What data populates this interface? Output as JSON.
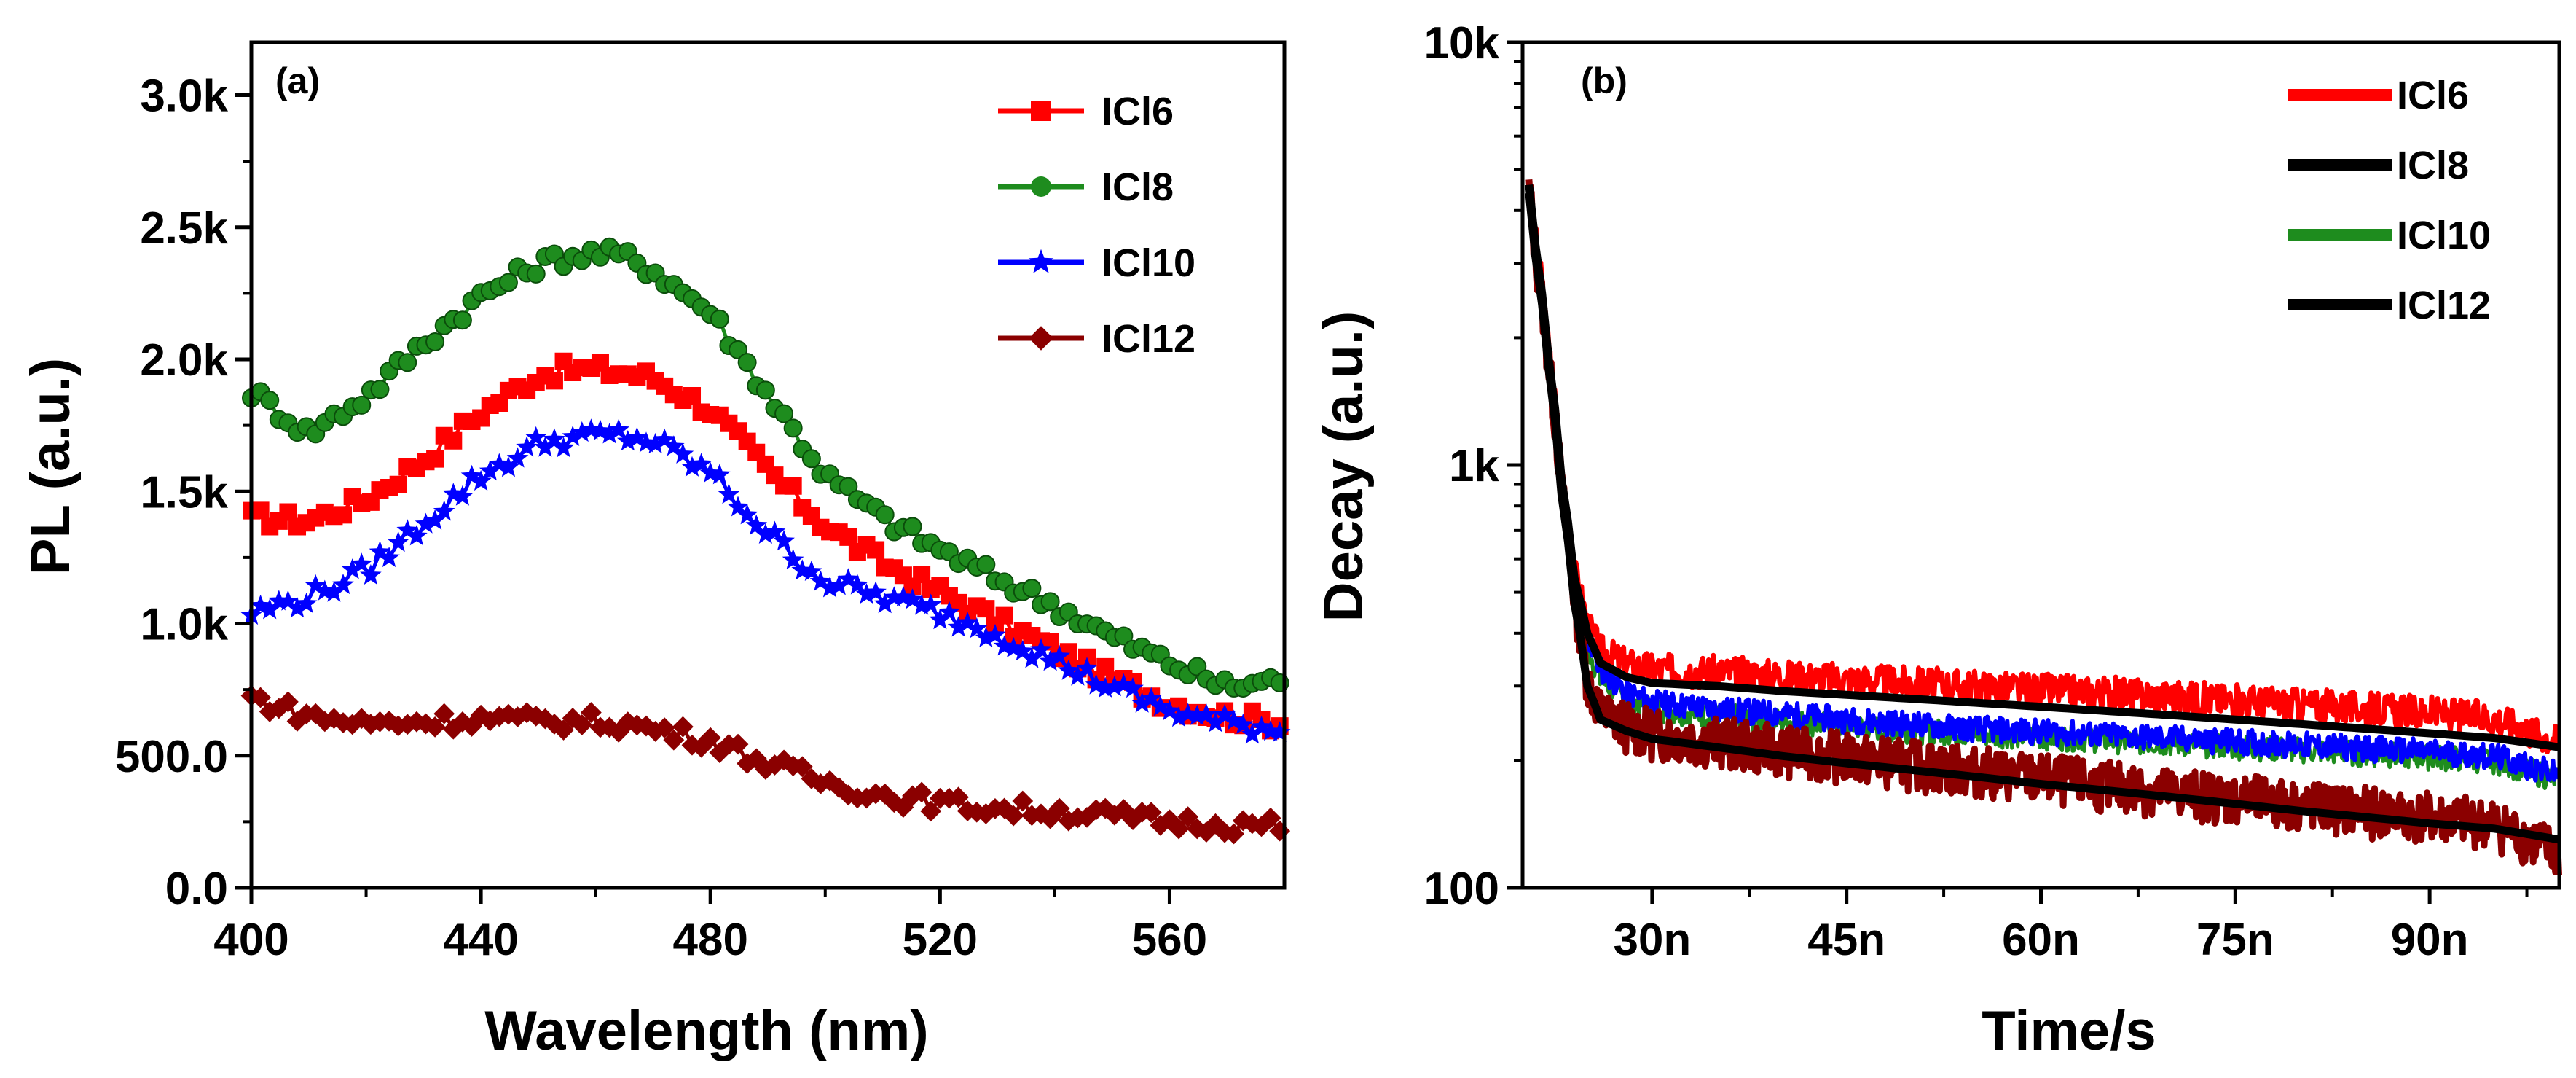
{
  "chart_data": [
    {
      "type": "scatter",
      "panel_label": "(a)",
      "xlabel": "Wavelength (nm)",
      "ylabel": "PL (a.u.)",
      "xlim": [
        400,
        580
      ],
      "ylim": [
        0,
        3200
      ],
      "x_ticks": [
        400,
        440,
        480,
        520,
        560
      ],
      "x_tick_labels": [
        "400",
        "440",
        "480",
        "520",
        "560"
      ],
      "y_ticks": [
        0,
        500,
        1000,
        1500,
        2000,
        2500,
        3000
      ],
      "y_tick_labels": [
        "0.0",
        "500.0",
        "1.0k",
        "1.5k",
        "2.0k",
        "2.5k",
        "3.0k"
      ],
      "legend_position": "top-right",
      "x": [
        400,
        410,
        420,
        430,
        440,
        450,
        455,
        460,
        465,
        470,
        480,
        490,
        500,
        510,
        520,
        530,
        540,
        550,
        560,
        570,
        580
      ],
      "series": [
        {
          "name": "ICl6",
          "color": "#ff0000",
          "marker": "square",
          "values": [
            1400,
            1390,
            1470,
            1620,
            1800,
            1940,
            1960,
            1960,
            1950,
            1930,
            1810,
            1580,
            1370,
            1230,
            1120,
            1010,
            900,
            790,
            700,
            650,
            620
          ]
        },
        {
          "name": "ICl8",
          "color": "#1e8c1e",
          "marker": "circle",
          "values": [
            1880,
            1720,
            1860,
            2060,
            2240,
            2360,
            2390,
            2400,
            2390,
            2340,
            2180,
            1870,
            1560,
            1400,
            1280,
            1170,
            1070,
            950,
            850,
            760,
            790
          ]
        },
        {
          "name": "ICl10",
          "color": "#0000ff",
          "marker": "star",
          "values": [
            1040,
            1100,
            1200,
            1380,
            1560,
            1680,
            1700,
            1710,
            1710,
            1690,
            1570,
            1340,
            1160,
            1100,
            1040,
            960,
            860,
            760,
            670,
            620,
            600
          ]
        },
        {
          "name": "ICl12",
          "color": "#8b0000",
          "marker": "diamond",
          "values": [
            720,
            650,
            620,
            630,
            640,
            630,
            630,
            630,
            620,
            600,
            560,
            470,
            400,
            350,
            320,
            300,
            290,
            270,
            250,
            240,
            230
          ]
        }
      ]
    },
    {
      "type": "line",
      "panel_label": "(b)",
      "xlabel": "Time/s",
      "ylabel": "Decay (a.u.)",
      "xlim": [
        20,
        100
      ],
      "ylim": [
        100,
        10000
      ],
      "y_scale": "log",
      "x_ticks": [
        30,
        45,
        60,
        75,
        90
      ],
      "x_tick_labels": [
        "30n",
        "45n",
        "60n",
        "75n",
        "90n"
      ],
      "y_ticks": [
        100,
        1000,
        10000
      ],
      "y_tick_labels": [
        "100",
        "1k",
        "10k"
      ],
      "x_unit": "ns",
      "legend_position": "top-right",
      "x": [
        20.5,
        21,
        22,
        23,
        24,
        25,
        26,
        28,
        30,
        35,
        40,
        45,
        50,
        55,
        60,
        65,
        70,
        75,
        80,
        85,
        90,
        95,
        100
      ],
      "series": [
        {
          "name": "ICl6",
          "color": "#ff0000",
          "values": [
            4700,
            3400,
            1850,
            950,
            560,
            420,
            365,
            340,
            330,
            325,
            318,
            312,
            306,
            300,
            295,
            290,
            284,
            278,
            272,
            266,
            260,
            252,
            222
          ]
        },
        {
          "name": "ICl8",
          "color": "#000000",
          "values": [
            4600,
            3300,
            1800,
            930,
            540,
            400,
            340,
            315,
            305,
            300,
            292,
            286,
            280,
            274,
            268,
            262,
            256,
            250,
            244,
            238,
            232,
            226,
            215
          ]
        },
        {
          "name": "ICl10",
          "color": "#1e8c1e",
          "values": [
            4500,
            3200,
            1750,
            900,
            520,
            370,
            310,
            280,
            265,
            255,
            248,
            242,
            236,
            232,
            228,
            224,
            220,
            216,
            212,
            208,
            204,
            200,
            180
          ]
        },
        {
          "name": "ICl12",
          "color": "#000000",
          "values": [
            4400,
            3100,
            1700,
            850,
            470,
            300,
            250,
            235,
            225,
            215,
            205,
            197,
            190,
            183,
            176,
            170,
            164,
            158,
            152,
            147,
            142,
            138,
            130
          ]
        }
      ],
      "extra_traces": [
        {
          "name": "blue-trace",
          "color": "#0000ff",
          "values": [
            4550,
            3250,
            1780,
            920,
            530,
            390,
            330,
            290,
            275,
            265,
            258,
            250,
            244,
            238,
            234,
            230,
            226,
            222,
            218,
            214,
            210,
            205,
            185
          ]
        },
        {
          "name": "darkred-trace",
          "color": "#8b0000",
          "values": [
            4450,
            3150,
            1720,
            870,
            480,
            310,
            260,
            242,
            232,
            222,
            212,
            204,
            196,
            189,
            182,
            175,
            169,
            163,
            157,
            152,
            147,
            142,
            120
          ]
        }
      ]
    }
  ]
}
